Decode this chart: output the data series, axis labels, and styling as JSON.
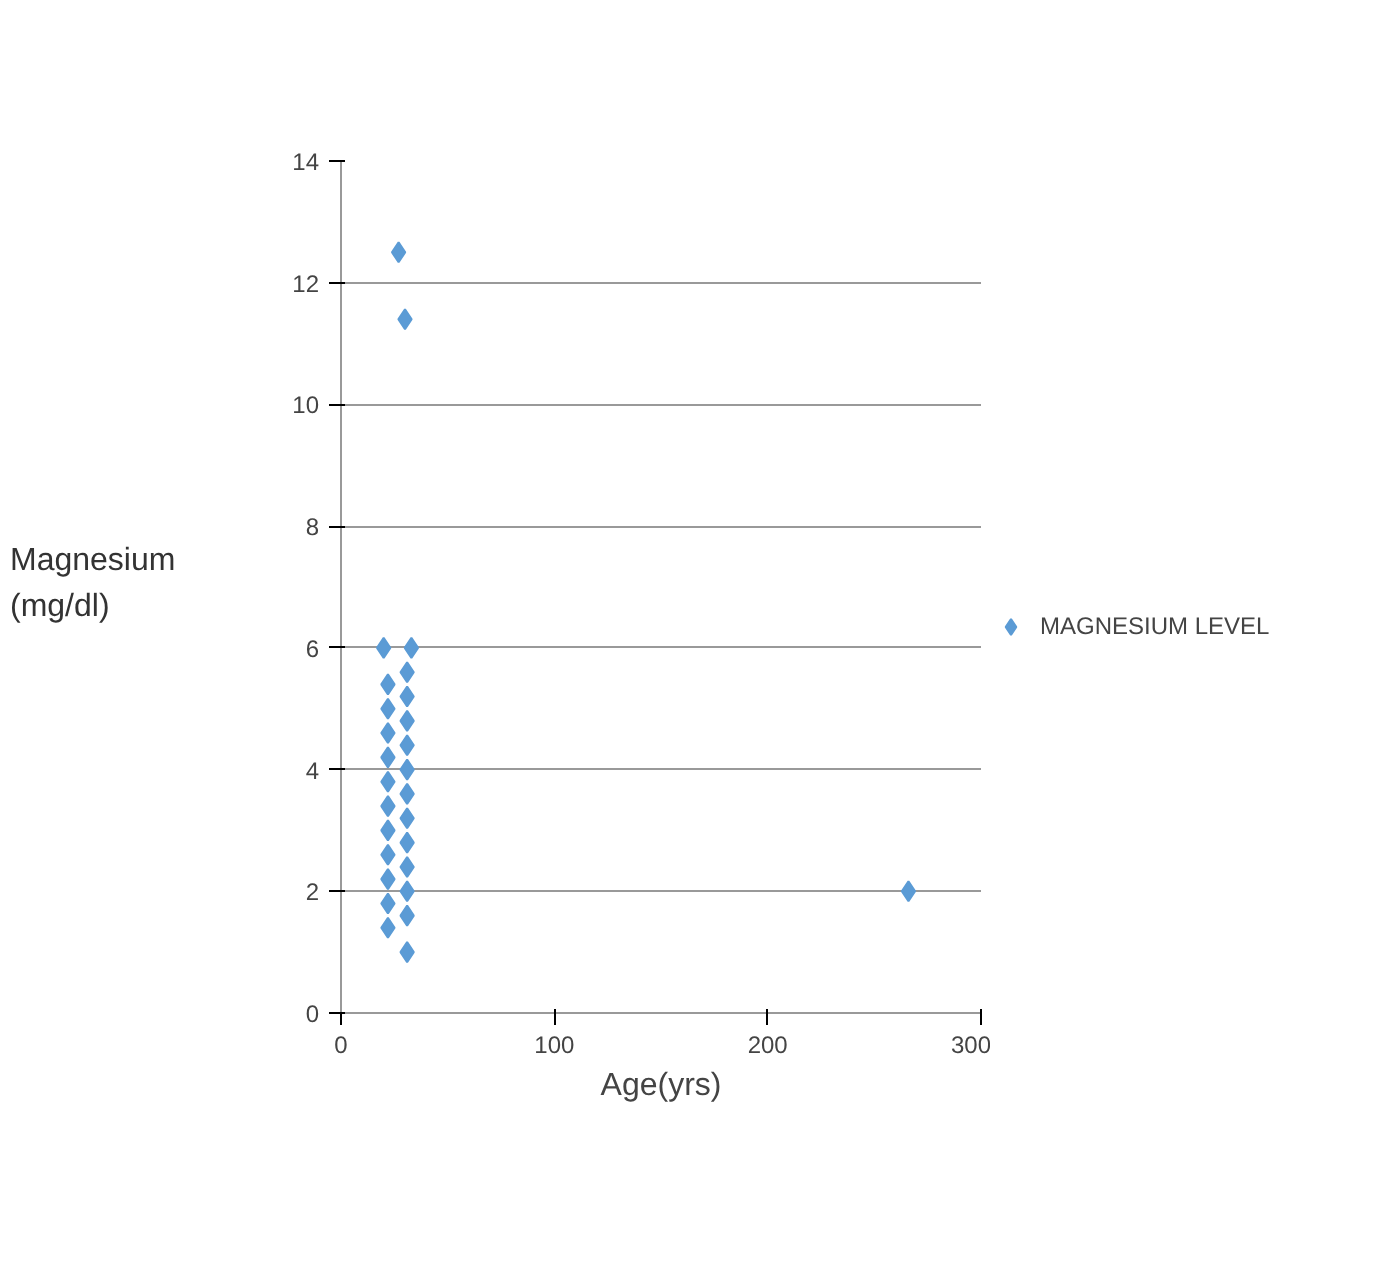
{
  "chart_data": {
    "type": "scatter",
    "xlabel": "Age(yrs)",
    "ylabel": "Magnesium\n(mg/dl)",
    "xlim": [
      0,
      300
    ],
    "ylim": [
      0,
      14
    ],
    "xticks": [
      0,
      100,
      200,
      300
    ],
    "yticks": [
      0,
      2,
      4,
      6,
      8,
      10,
      12,
      14
    ],
    "grid": "y",
    "legend": "right",
    "marker": "diamond",
    "series": [
      {
        "name": "MAGNESIUM LEVEL",
        "color": "#5b9bd5",
        "x": [
          20,
          22,
          22,
          22,
          22,
          22,
          22,
          22,
          22,
          22,
          22,
          22,
          33,
          31,
          31,
          31,
          31,
          31,
          31,
          31,
          31,
          31,
          31,
          31,
          31,
          27,
          30,
          266
        ],
        "values": [
          6,
          5.4,
          5.0,
          4.6,
          4.2,
          3.8,
          3.4,
          3.0,
          2.6,
          2.2,
          1.8,
          1.4,
          6,
          5.6,
          5.2,
          4.8,
          4.4,
          4.0,
          3.6,
          3.2,
          2.8,
          2.4,
          2.0,
          1.6,
          1.0,
          12.5,
          11.4,
          2
        ]
      }
    ]
  }
}
